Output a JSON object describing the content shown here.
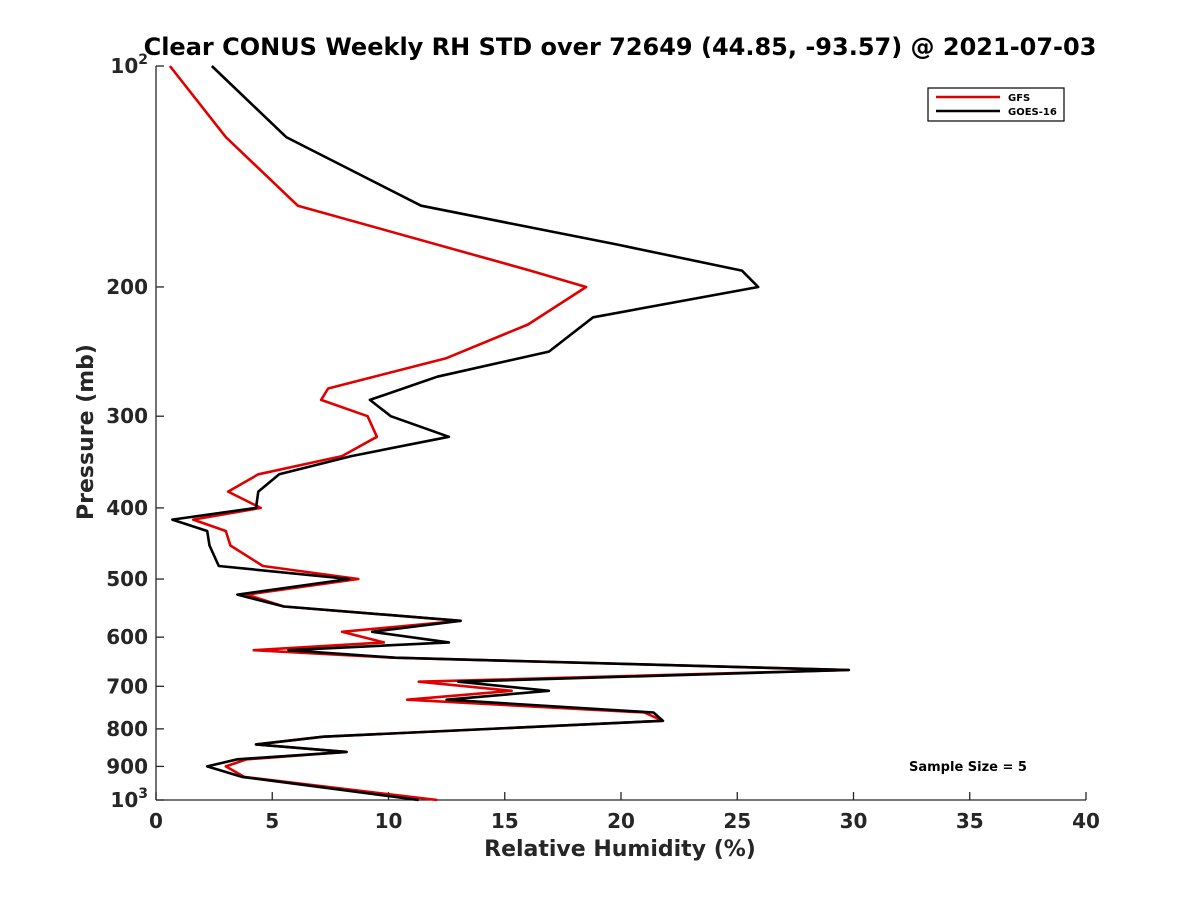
{
  "chart_data": {
    "type": "line",
    "title": "Clear CONUS Weekly RH STD over 72649 (44.85, -93.57) @ 2021-07-03",
    "xlabel": "Relative Humidity (%)",
    "ylabel": "Pressure (mb)",
    "xlim": [
      0,
      40
    ],
    "ylim": [
      100,
      1000
    ],
    "y_scale": "log",
    "y_reversed": true,
    "x_ticks": [
      0,
      5,
      10,
      15,
      20,
      25,
      30,
      35,
      40
    ],
    "y_ticks": [
      {
        "value": 100,
        "base": "10",
        "exp": "2"
      },
      {
        "value": 200,
        "label": "200"
      },
      {
        "value": 300,
        "label": "300"
      },
      {
        "value": 400,
        "label": "400"
      },
      {
        "value": 500,
        "label": "500"
      },
      {
        "value": 600,
        "label": "600"
      },
      {
        "value": 700,
        "label": "700"
      },
      {
        "value": 800,
        "label": "800"
      },
      {
        "value": 900,
        "label": "900"
      },
      {
        "value": 1000,
        "base": "10",
        "exp": "3"
      }
    ],
    "grid": false,
    "legend_position": "top-right",
    "annotation": "Sample Size = 5",
    "series": [
      {
        "name": "GFS",
        "color": "#e00000",
        "x": [
          0.6,
          3.0,
          6.1,
          16.1,
          18.5,
          16.0,
          12.5,
          7.4,
          7.1,
          9.1,
          9.5,
          8.0,
          4.4,
          3.1,
          4.5,
          1.6,
          3.0,
          3.2,
          4.6,
          8.7,
          3.9,
          5.5,
          13.1,
          8.0,
          9.8,
          4.2,
          10.2,
          29.8,
          11.3,
          15.3,
          10.8,
          21.0,
          21.8,
          7.2,
          4.3,
          8.2,
          3.9,
          3.0,
          3.8,
          12.1
        ],
        "y": [
          100,
          125,
          155,
          190,
          200,
          225,
          250,
          275,
          285,
          300,
          320,
          340,
          360,
          380,
          400,
          415,
          430,
          450,
          480,
          500,
          525,
          545,
          570,
          590,
          610,
          625,
          640,
          665,
          690,
          710,
          730,
          760,
          780,
          820,
          840,
          860,
          880,
          900,
          930,
          1000
        ]
      },
      {
        "name": "GOES-16",
        "color": "#000000",
        "x": [
          2.4,
          5.6,
          11.4,
          19.8,
          25.2,
          25.9,
          18.8,
          16.9,
          12.1,
          9.2,
          10.1,
          12.6,
          8.4,
          5.3,
          4.4,
          4.3,
          0.7,
          2.2,
          2.3,
          2.7,
          8.3,
          3.5,
          5.5,
          13.1,
          9.3,
          12.6,
          5.7,
          10.3,
          29.8,
          13.0,
          16.9,
          12.5,
          21.4,
          21.8,
          7.2,
          4.3,
          8.2,
          3.5,
          2.2,
          3.7,
          11.3
        ],
        "y": [
          100,
          125,
          155,
          175,
          190,
          200,
          220,
          245,
          265,
          285,
          300,
          320,
          340,
          360,
          380,
          400,
          415,
          430,
          450,
          480,
          500,
          525,
          545,
          570,
          590,
          610,
          625,
          640,
          665,
          690,
          710,
          730,
          760,
          780,
          820,
          840,
          860,
          880,
          900,
          930,
          1000
        ]
      }
    ]
  }
}
